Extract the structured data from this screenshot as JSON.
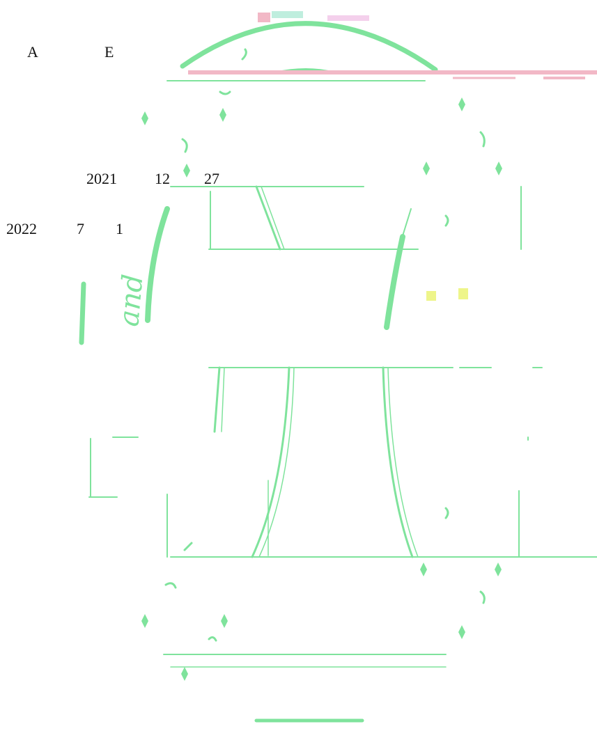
{
  "header": {
    "letter_a": "A",
    "letter_e": "E"
  },
  "dates": {
    "start": {
      "year": "2021",
      "month": "12",
      "day": "27"
    },
    "end": {
      "year": "2022",
      "month": "7",
      "day": "1"
    }
  },
  "seal": {
    "fragment_text": "and",
    "color": "#7fe39c",
    "accent_pink": "#f2b8c6",
    "accent_yellow": "#eef58a"
  }
}
